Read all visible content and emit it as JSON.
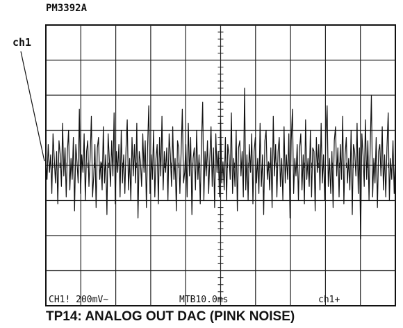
{
  "instrument": {
    "model": "PM3392A"
  },
  "channel_marker": "ch1",
  "caption": "TP14: ANALOG OUT DAC (PINK NOISE)",
  "readout": {
    "channel_scale": "CH1! 200mV~",
    "timebase": "MTB10.0ms",
    "trigger": "ch1+"
  },
  "colors": {
    "trace": "#111111",
    "grid": "#222222",
    "background": "#ffffff"
  },
  "chart_data": {
    "type": "line",
    "title": "PM3392A",
    "xlabel": "",
    "ylabel": "",
    "grid": true,
    "divisions": {
      "x": 10,
      "y": 8
    },
    "xlim": [
      0,
      100
    ],
    "ylim": [
      -4,
      4
    ],
    "x_units": "ms",
    "y_units": "div",
    "volts_per_div": "200mV",
    "series": [
      {
        "values": [
          0.1,
          -0.4,
          0.6,
          -0.2,
          0.3,
          -0.8,
          0.9,
          0.2,
          -0.5,
          0.4,
          -1.1,
          0.7,
          0.3,
          -0.6,
          1.2,
          -0.3,
          0.5,
          -0.9,
          0.4,
          1.0,
          -0.7,
          0.2,
          -0.4,
          0.8,
          -1.3,
          0.6,
          0.1,
          -0.5,
          1.6,
          -0.8,
          0.3,
          -0.2,
          0.9,
          -1.0,
          0.4,
          0.7,
          -0.6,
          0.2,
          1.4,
          -0.9,
          -0.3,
          0.6,
          -1.2,
          0.5,
          0.8,
          -0.4,
          0.1,
          -0.7,
          1.1,
          -0.5,
          0.3,
          -1.4,
          0.9,
          0.2,
          -0.6,
          0.7,
          -0.3,
          1.5,
          -1.1,
          0.4,
          -0.2,
          0.6,
          -0.9,
          1.0,
          -0.5,
          0.3,
          -0.8,
          0.5,
          1.3,
          -0.7,
          0.2,
          -1.0,
          0.8,
          -0.3,
          0.6,
          -0.5,
          1.2,
          -1.5,
          0.4,
          0.1,
          -0.6,
          0.9,
          -0.2,
          0.7,
          -1.2,
          0.5,
          1.7,
          -0.8,
          0.3,
          -0.4,
          1.0,
          -0.9,
          0.2,
          0.6,
          -1.1,
          0.8,
          -0.3,
          1.4,
          -0.7,
          0.4,
          -0.2,
          0.5,
          -1.0,
          0.9,
          0.3,
          -0.6,
          1.1,
          -0.4,
          0.2,
          -1.3,
          0.7,
          0.5,
          -0.8,
          0.4,
          1.6,
          -0.5,
          -0.2,
          0.6,
          -0.9,
          1.2,
          -0.3,
          0.8,
          -1.4,
          0.2,
          0.5,
          -0.7,
          1.0,
          -0.4,
          0.3,
          -1.1,
          0.6,
          1.8,
          -1.0,
          0.4,
          -0.3,
          0.7,
          -0.8,
          0.2,
          1.1,
          -0.6,
          0.5,
          -1.2,
          0.9,
          -0.2,
          0.4,
          -0.9,
          1.3,
          -0.5,
          0.1,
          -0.7,
          0.8,
          -1.0,
          0.6,
          0.3,
          -0.4,
          1.5,
          -0.8,
          0.2,
          -0.6,
          1.0,
          -1.3,
          0.5,
          0.7,
          -0.3,
          0.4,
          -0.9,
          2.2,
          -0.7,
          0.3,
          -1.0,
          0.6,
          -0.2,
          0.9,
          -1.1,
          0.4,
          0.8,
          -0.5,
          0.2,
          -0.8,
          1.2,
          -0.6,
          0.3,
          -1.4,
          0.7,
          1.0,
          -0.4,
          0.1,
          -0.7,
          0.5,
          -1.2,
          1.4,
          -0.3,
          0.6,
          -0.9,
          0.4,
          0.8,
          -0.6,
          0.2,
          -1.0,
          1.1,
          -0.5,
          0.3,
          -0.4,
          0.9,
          -1.5,
          0.7,
          1.6,
          -0.8,
          0.2,
          -0.3,
          0.6,
          -1.0,
          0.5,
          0.9,
          -0.7,
          0.3,
          -1.1,
          1.3,
          -0.4,
          0.2,
          -0.6,
          1.0,
          -0.9,
          0.5,
          0.4,
          -1.3,
          0.8,
          -0.2,
          0.6,
          -0.7,
          1.2,
          -0.5,
          0.3,
          -1.0,
          0.9,
          1.7,
          -0.6,
          0.2,
          -0.8,
          0.4,
          -1.2,
          0.7,
          1.1,
          -0.3,
          0.5,
          -0.9,
          0.6,
          -0.4,
          1.4,
          -1.1,
          0.3,
          0.8,
          -0.5,
          0.2,
          -0.7,
          1.0,
          -1.4,
          0.6,
          0.4,
          -0.3,
          1.2,
          -0.8,
          0.5,
          -2.1,
          0.9,
          0.3,
          -0.6,
          1.3,
          -0.4,
          0.7,
          -1.0,
          0.5,
          2.0,
          -0.9,
          0.2,
          -0.5,
          0.8,
          -1.2,
          0.4,
          0.6,
          -0.3,
          1.1,
          -0.7,
          0.3,
          -0.9,
          0.5,
          1.5,
          -1.0,
          0.2,
          -0.4,
          0.7,
          -0.8,
          0.3
        ]
      }
    ]
  }
}
